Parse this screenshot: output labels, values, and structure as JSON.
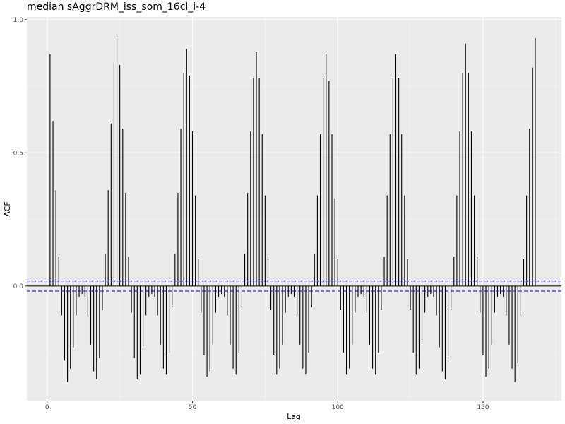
{
  "chart_data": {
    "type": "bar",
    "title": "median sAggrDRM_iss_som_16cl_i-4",
    "xlabel": "Lag",
    "ylabel": "ACF",
    "xlim": [
      -7,
      177
    ],
    "ylim": [
      -0.43,
      1.01
    ],
    "x_ticks": [
      0,
      50,
      100,
      150
    ],
    "x_tick_labels": [
      "0",
      "50",
      "100",
      "150"
    ],
    "y_ticks": [
      0.0,
      0.5,
      1.0
    ],
    "y_tick_labels": [
      "0.0",
      "0.5",
      "1.0"
    ],
    "grid": true,
    "zero_line": 0,
    "confidence_band": [
      -0.019,
      0.019
    ],
    "lags": [
      1,
      2,
      3,
      4,
      5,
      6,
      7,
      8,
      9,
      10,
      11,
      12,
      13,
      14,
      15,
      16,
      17,
      18,
      19,
      20,
      21,
      22,
      23,
      24,
      25,
      26,
      27,
      28,
      29,
      30,
      31,
      32,
      33,
      34,
      35,
      36,
      37,
      38,
      39,
      40,
      41,
      42,
      43,
      44,
      45,
      46,
      47,
      48,
      49,
      50,
      51,
      52,
      53,
      54,
      55,
      56,
      57,
      58,
      59,
      60,
      61,
      62,
      63,
      64,
      65,
      66,
      67,
      68,
      69,
      70,
      71,
      72,
      73,
      74,
      75,
      76,
      77,
      78,
      79,
      80,
      81,
      82,
      83,
      84,
      85,
      86,
      87,
      88,
      89,
      90,
      91,
      92,
      93,
      94,
      95,
      96,
      97,
      98,
      99,
      100,
      101,
      102,
      103,
      104,
      105,
      106,
      107,
      108,
      109,
      110,
      111,
      112,
      113,
      114,
      115,
      116,
      117,
      118,
      119,
      120,
      121,
      122,
      123,
      124,
      125,
      126,
      127,
      128,
      129,
      130,
      131,
      132,
      133,
      134,
      135,
      136,
      137,
      138,
      139,
      140,
      141,
      142,
      143,
      144,
      145,
      146,
      147,
      148,
      149,
      150,
      151,
      152,
      153,
      154,
      155,
      156,
      157,
      158,
      159,
      160,
      161,
      162,
      163,
      164,
      165,
      166,
      167,
      168
    ],
    "acf": [
      0.87,
      0.62,
      0.36,
      0.11,
      -0.11,
      -0.28,
      -0.36,
      -0.31,
      -0.23,
      -0.11,
      -0.04,
      -0.03,
      -0.04,
      -0.11,
      -0.22,
      -0.32,
      -0.35,
      -0.27,
      -0.09,
      0.12,
      0.36,
      0.61,
      0.84,
      0.94,
      0.83,
      0.59,
      0.35,
      0.11,
      -0.1,
      -0.27,
      -0.35,
      -0.33,
      -0.23,
      -0.11,
      -0.04,
      -0.03,
      -0.04,
      -0.11,
      -0.22,
      -0.31,
      -0.33,
      -0.25,
      -0.08,
      0.12,
      0.35,
      0.59,
      0.8,
      0.89,
      0.79,
      0.58,
      0.34,
      0.1,
      -0.1,
      -0.26,
      -0.34,
      -0.32,
      -0.22,
      -0.1,
      -0.04,
      -0.03,
      -0.04,
      -0.11,
      -0.22,
      -0.31,
      -0.33,
      -0.25,
      -0.08,
      0.12,
      0.35,
      0.58,
      0.78,
      0.88,
      0.78,
      0.57,
      0.34,
      0.11,
      -0.09,
      -0.26,
      -0.33,
      -0.31,
      -0.22,
      -0.1,
      -0.04,
      -0.03,
      -0.04,
      -0.11,
      -0.22,
      -0.31,
      -0.33,
      -0.25,
      -0.08,
      0.12,
      0.34,
      0.57,
      0.78,
      0.87,
      0.77,
      0.57,
      0.33,
      0.1,
      -0.09,
      -0.25,
      -0.33,
      -0.31,
      -0.22,
      -0.1,
      -0.04,
      -0.03,
      -0.04,
      -0.1,
      -0.22,
      -0.31,
      -0.33,
      -0.25,
      -0.09,
      0.11,
      0.34,
      0.57,
      0.78,
      0.87,
      0.78,
      0.57,
      0.34,
      0.1,
      -0.09,
      -0.25,
      -0.33,
      -0.31,
      -0.21,
      -0.1,
      -0.04,
      -0.03,
      -0.04,
      -0.11,
      -0.23,
      -0.32,
      -0.35,
      -0.28,
      -0.09,
      0.11,
      0.34,
      0.58,
      0.8,
      0.91,
      0.8,
      0.58,
      0.34,
      0.11,
      -0.1,
      -0.26,
      -0.34,
      -0.31,
      -0.22,
      -0.1,
      -0.04,
      -0.03,
      -0.04,
      -0.11,
      -0.22,
      -0.31,
      -0.36,
      -0.29,
      -0.11,
      0.1,
      0.34,
      0.59,
      0.82,
      0.93
    ]
  }
}
